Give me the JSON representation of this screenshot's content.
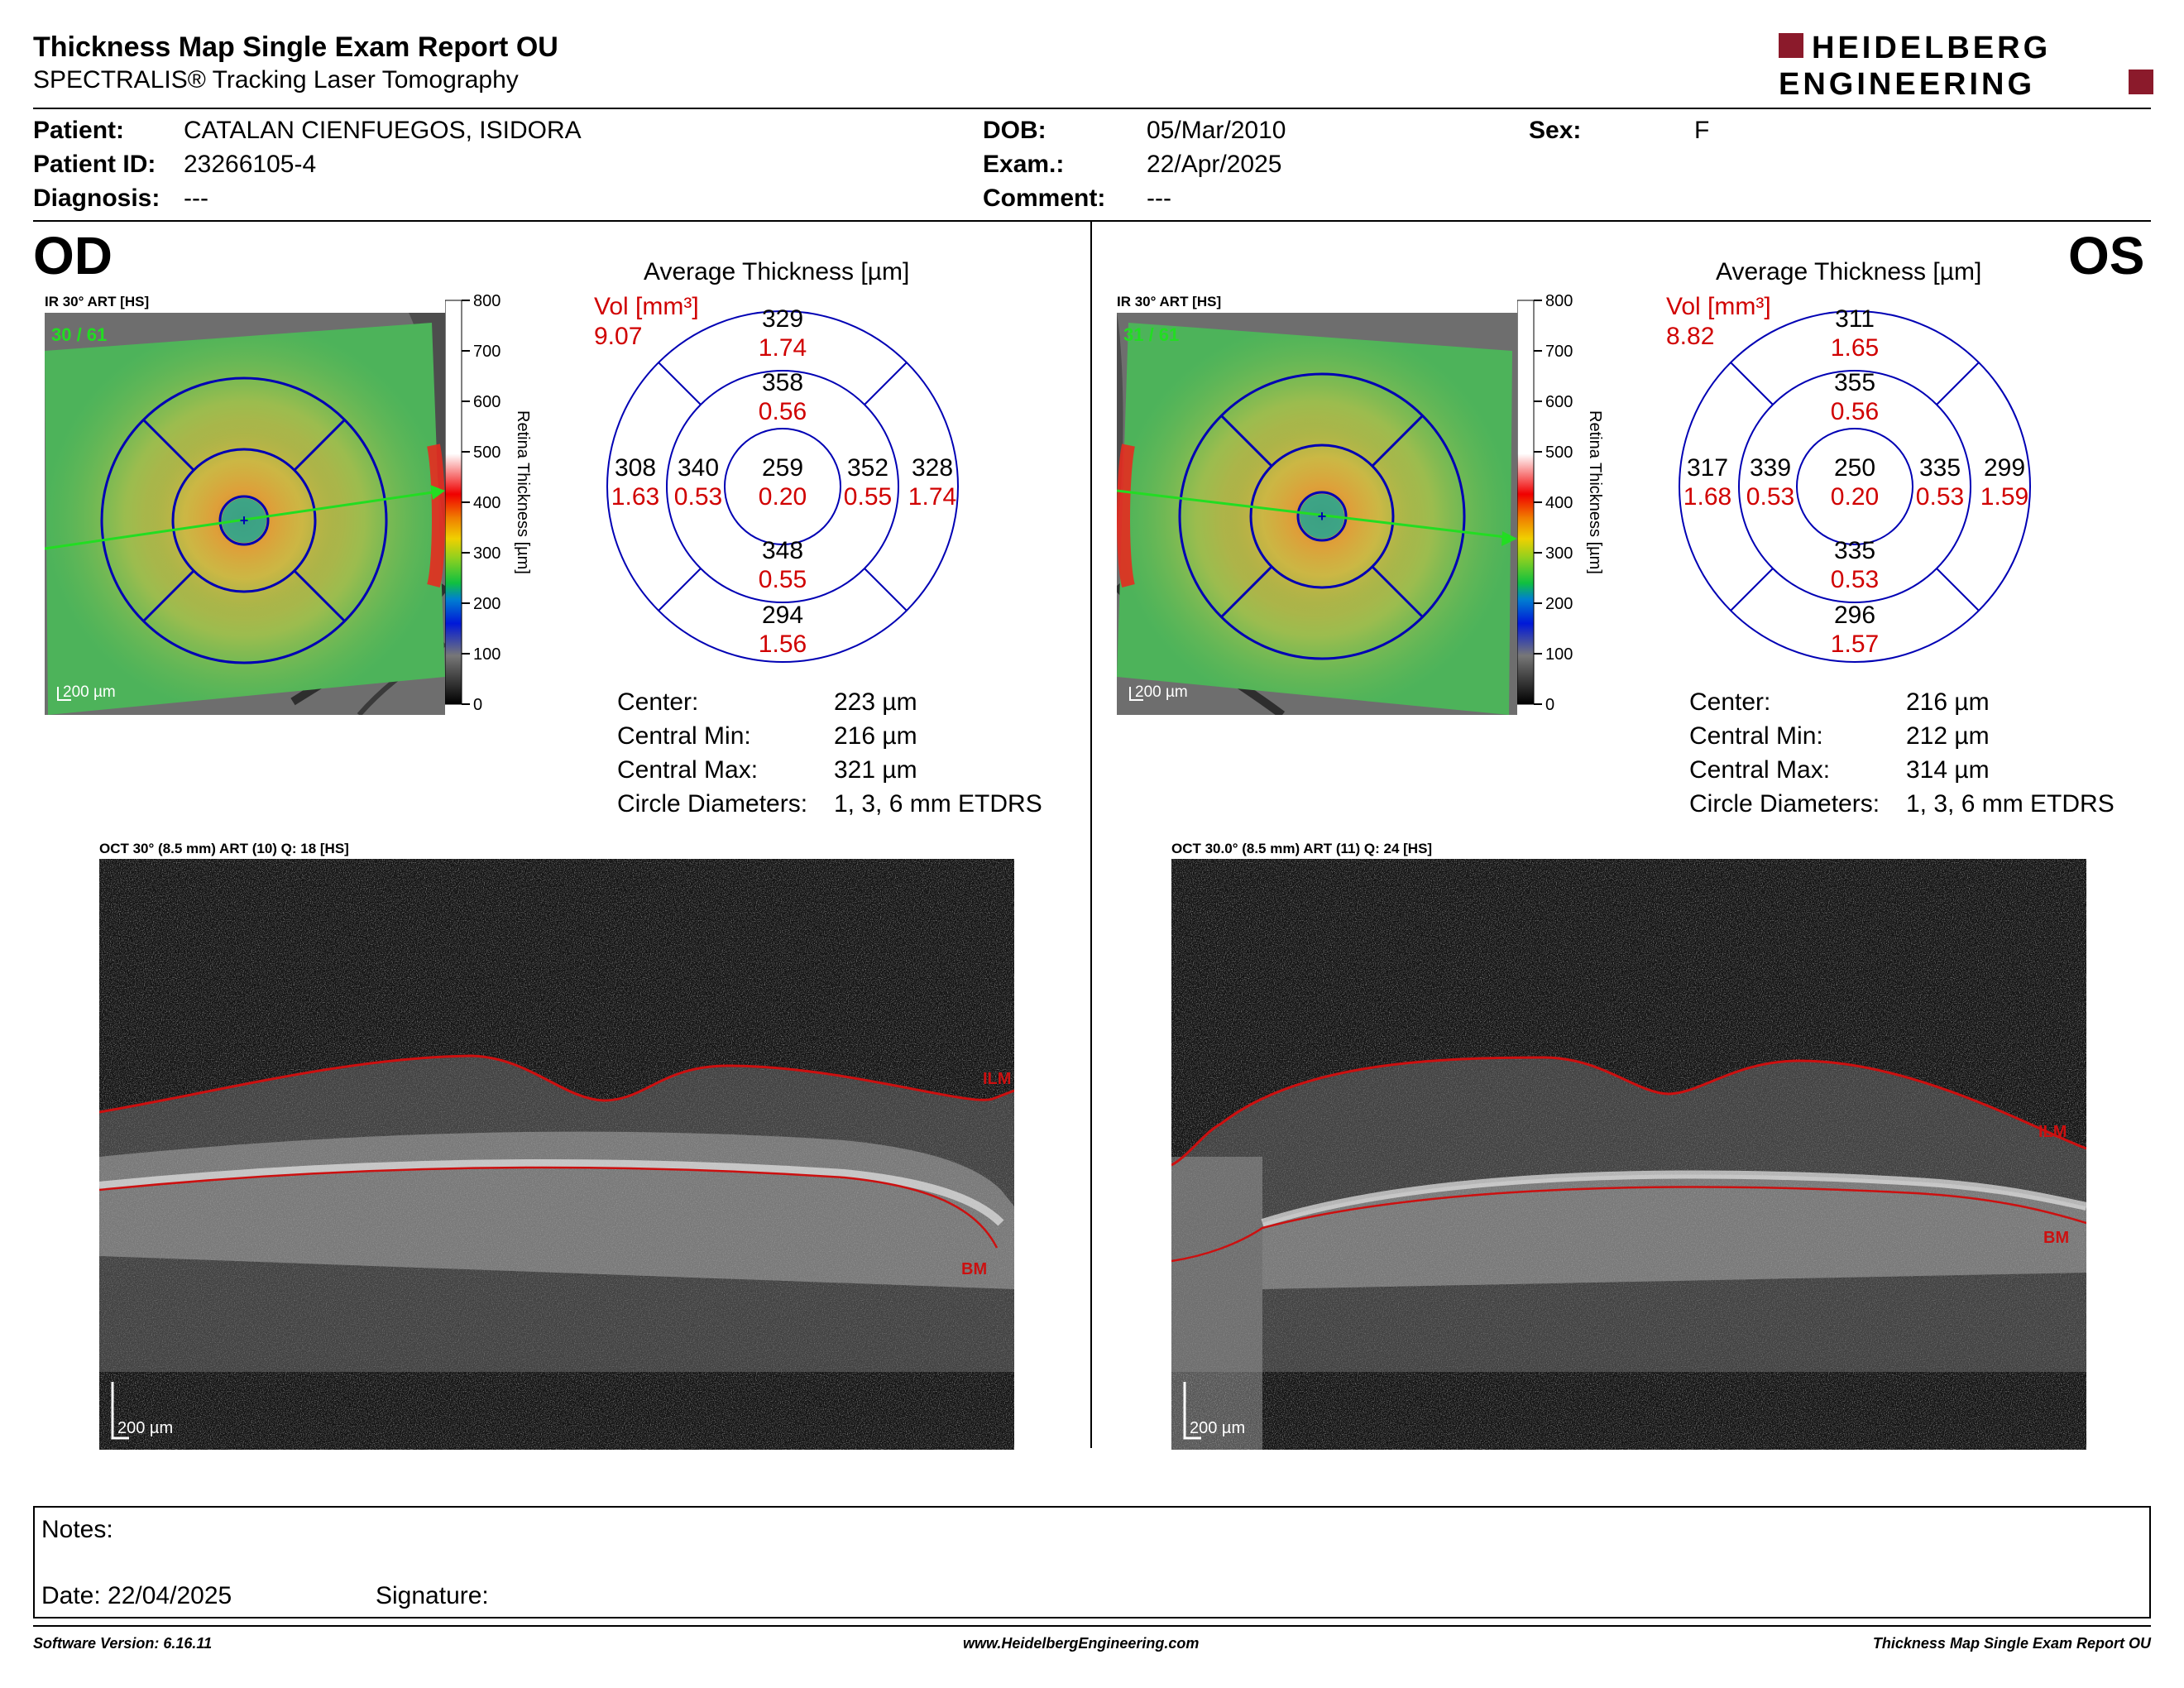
{
  "header": {
    "title": "Thickness Map Single Exam Report OU",
    "subtitle": "SPECTRALIS® Tracking Laser Tomography",
    "logo_line1": "HEIDELBERG",
    "logo_line2": "ENGINEERING"
  },
  "patient": {
    "patient_label": "Patient:",
    "patient_value": "CATALAN CIENFUEGOS, ISIDORA",
    "id_label": "Patient ID:",
    "id_value": "23266105-4",
    "diagnosis_label": "Diagnosis:",
    "diagnosis_value": "---",
    "dob_label": "DOB:",
    "dob_value": "05/Mar/2010",
    "exam_label": "Exam.:",
    "exam_value": "22/Apr/2025",
    "comment_label": "Comment:",
    "comment_value": "---",
    "sex_label": "Sex:",
    "sex_value": "F"
  },
  "od": {
    "eye": "OD",
    "ir_label": "IR 30° ART [HS]",
    "frame": "30 / 61",
    "scale": "200 µm",
    "colorbar_ticks": [
      "800",
      "700",
      "600",
      "500",
      "400",
      "300",
      "200",
      "100",
      "0"
    ],
    "colorbar_title": "Retina Thickness [µm]",
    "avg_title": "Average Thickness [µm]",
    "vol_label": "Vol [mm³]",
    "vol_value": "9.07",
    "sectors": {
      "outer_top": [
        "329",
        "1.74"
      ],
      "inner_top": [
        "358",
        "0.56"
      ],
      "outer_left": [
        "308",
        "1.63"
      ],
      "inner_left": [
        "340",
        "0.53"
      ],
      "center": [
        "259",
        "0.20"
      ],
      "inner_right": [
        "352",
        "0.55"
      ],
      "outer_right": [
        "328",
        "1.74"
      ],
      "inner_bottom": [
        "348",
        "0.55"
      ],
      "outer_bottom": [
        "294",
        "1.56"
      ]
    },
    "summary": [
      [
        "Center:",
        "223 µm"
      ],
      [
        "Central Min:",
        "216 µm"
      ],
      [
        "Central Max:",
        "321 µm"
      ],
      [
        "Circle Diameters:",
        "1, 3, 6 mm ETDRS"
      ]
    ],
    "oct_label": "OCT 30° (8.5 mm) ART (10) Q: 18 [HS]",
    "ilm": "ILM",
    "bm": "BM",
    "oct_scale": "200 µm"
  },
  "os": {
    "eye": "OS",
    "ir_label": "IR 30° ART [HS]",
    "frame": "31 / 61",
    "scale": "200 µm",
    "colorbar_ticks": [
      "800",
      "700",
      "600",
      "500",
      "400",
      "300",
      "200",
      "100",
      "0"
    ],
    "colorbar_title": "Retina Thickness [µm]",
    "avg_title": "Average Thickness [µm]",
    "vol_label": "Vol [mm³]",
    "vol_value": "8.82",
    "sectors": {
      "outer_top": [
        "311",
        "1.65"
      ],
      "inner_top": [
        "355",
        "0.56"
      ],
      "outer_left": [
        "317",
        "1.68"
      ],
      "inner_left": [
        "339",
        "0.53"
      ],
      "center": [
        "250",
        "0.20"
      ],
      "inner_right": [
        "335",
        "0.53"
      ],
      "outer_right": [
        "299",
        "1.59"
      ],
      "inner_bottom": [
        "335",
        "0.53"
      ],
      "outer_bottom": [
        "296",
        "1.57"
      ]
    },
    "summary": [
      [
        "Center:",
        "216 µm"
      ],
      [
        "Central Min:",
        "212 µm"
      ],
      [
        "Central Max:",
        "314 µm"
      ],
      [
        "Circle Diameters:",
        "1, 3, 6 mm ETDRS"
      ]
    ],
    "oct_label": "OCT 30.0° (8.5 mm) ART (11) Q: 24 [HS]",
    "ilm": "ILM",
    "bm": "BM",
    "oct_scale": "200 µm"
  },
  "notes": {
    "notes_label": "Notes:",
    "date_label": "Date: 22/04/2025",
    "signature_label": "Signature:"
  },
  "footer": {
    "software": "Software Version: 6.16.11",
    "website": "www.HeidelbergEngineering.com",
    "report": "Thickness Map Single Exam Report OU"
  },
  "colors": {
    "brand": "#8b1a2b",
    "grid_blue": "#0000b4",
    "volume_red": "#d00000",
    "scan_green": "#22dd22",
    "layer_red": "#cc1010"
  }
}
